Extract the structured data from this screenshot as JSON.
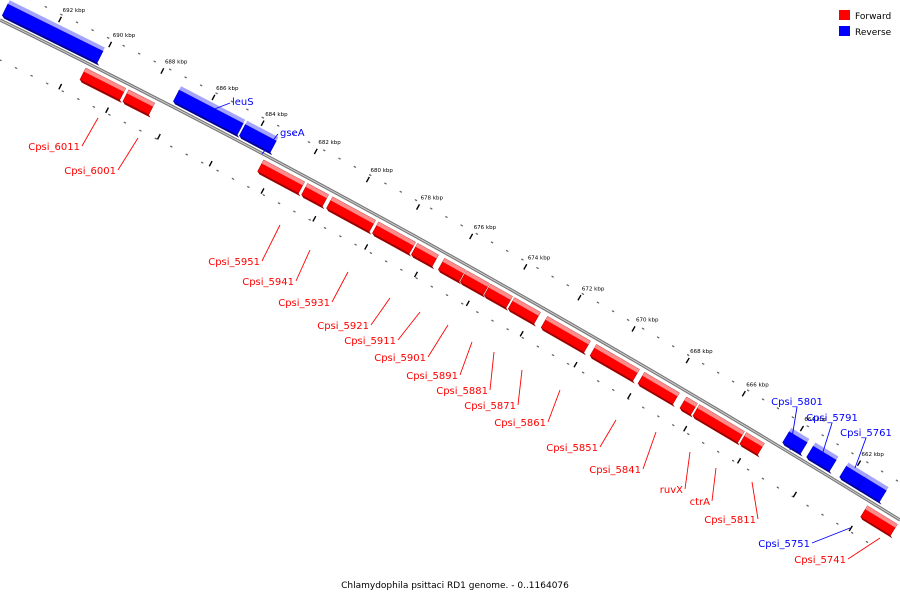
{
  "caption": "Chlamydophila psittaci RD1 genome. - 0..1164076",
  "legend": {
    "forward": {
      "label": "Forward",
      "color": "#ff0000"
    },
    "reverse": {
      "label": "Reverse",
      "color": "#0000ff"
    }
  },
  "colors": {
    "forward": "#ff0000",
    "forward_dark": "#990000",
    "forward_light": "#ff9a9a",
    "reverse": "#0000ff",
    "reverse_dark": "#000099",
    "reverse_light": "#9a9aff",
    "backbone": "#555555"
  },
  "ticks": [
    {
      "label": "692 kbp"
    },
    {
      "label": "690 kbp"
    },
    {
      "label": "688 kbp"
    },
    {
      "label": "686 kbp"
    },
    {
      "label": "684 kbp"
    },
    {
      "label": "682 kbp"
    },
    {
      "label": "680 kbp"
    },
    {
      "label": "678 kbp"
    },
    {
      "label": "676 kbp"
    },
    {
      "label": "674 kbp"
    },
    {
      "label": "672 kbp"
    },
    {
      "label": "670 kbp"
    },
    {
      "label": "668 kbp"
    },
    {
      "label": "666 kbp"
    },
    {
      "label": "664 kbp"
    },
    {
      "label": "662 kbp"
    }
  ],
  "genes": [
    {
      "name": "",
      "strand": "reverse"
    },
    {
      "name": "Cpsi_6011",
      "strand": "forward"
    },
    {
      "name": "Cpsi_6001",
      "strand": "forward"
    },
    {
      "name": "leuS",
      "strand": "reverse"
    },
    {
      "name": "gseA",
      "strand": "reverse"
    },
    {
      "name": "Cpsi_5951",
      "strand": "forward"
    },
    {
      "name": "Cpsi_5941",
      "strand": "forward"
    },
    {
      "name": "Cpsi_5931",
      "strand": "forward"
    },
    {
      "name": "Cpsi_5921",
      "strand": "forward"
    },
    {
      "name": "Cpsi_5911",
      "strand": "forward"
    },
    {
      "name": "Cpsi_5901",
      "strand": "forward"
    },
    {
      "name": "Cpsi_5891",
      "strand": "forward"
    },
    {
      "name": "Cpsi_5881",
      "strand": "forward"
    },
    {
      "name": "Cpsi_5871",
      "strand": "forward"
    },
    {
      "name": "Cpsi_5861",
      "strand": "forward"
    },
    {
      "name": "Cpsi_5851",
      "strand": "forward"
    },
    {
      "name": "Cpsi_5841",
      "strand": "forward"
    },
    {
      "name": "ruvX",
      "strand": "forward"
    },
    {
      "name": "ctrA",
      "strand": "forward"
    },
    {
      "name": "Cpsi_5811",
      "strand": "forward"
    },
    {
      "name": "Cpsi_5801",
      "strand": "reverse"
    },
    {
      "name": "Cpsi_5791",
      "strand": "reverse"
    },
    {
      "name": "Cpsi_5761",
      "strand": "reverse"
    },
    {
      "name": "Cpsi_5751",
      "strand": "reverse"
    },
    {
      "name": "Cpsi_5741",
      "strand": "forward"
    }
  ]
}
